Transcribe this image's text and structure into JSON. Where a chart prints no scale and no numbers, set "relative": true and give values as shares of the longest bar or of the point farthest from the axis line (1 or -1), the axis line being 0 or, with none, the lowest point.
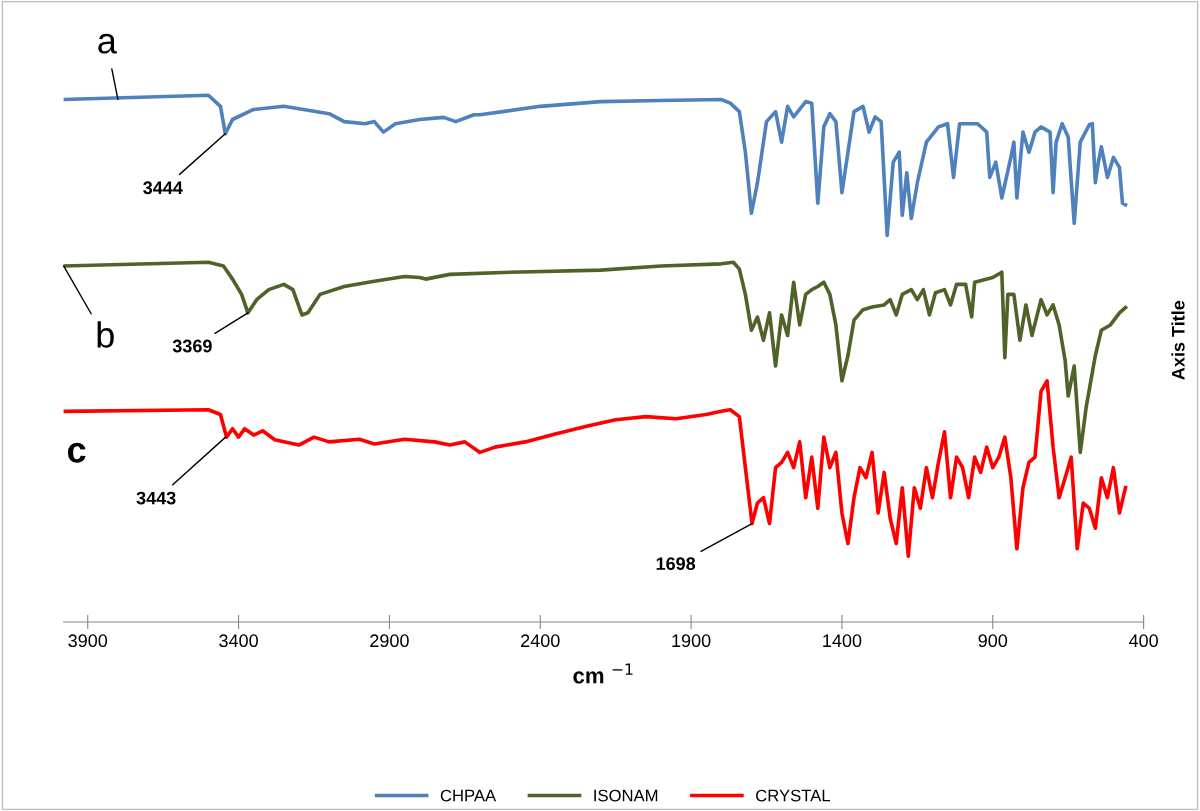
{
  "chart_data": {
    "type": "line",
    "relative": true,
    "xlabel": "cm $^{−1}$",
    "ylabel": "Axis Title",
    "xlim": [
      3980,
      400
    ],
    "xticks": [
      3900,
      3400,
      2900,
      2400,
      1900,
      1400,
      900,
      400
    ],
    "grid": false,
    "legend": "bottom",
    "marker": "none",
    "line_style": "solid",
    "series": [
      {
        "name": "CHPAA",
        "color": "#4f81bd",
        "x": [
          3980,
          3500,
          3460,
          3444,
          3420,
          3350,
          3250,
          3100,
          3050,
          2980,
          2950,
          2920,
          2880,
          2800,
          2720,
          2680,
          2620,
          2600,
          2400,
          2200,
          2000,
          1800,
          1770,
          1740,
          1720,
          1700,
          1680,
          1650,
          1620,
          1600,
          1580,
          1560,
          1520,
          1500,
          1480,
          1460,
          1440,
          1420,
          1400,
          1380,
          1360,
          1330,
          1310,
          1290,
          1270,
          1250,
          1230,
          1210,
          1200,
          1185,
          1170,
          1150,
          1120,
          1080,
          1050,
          1030,
          1010,
          950,
          920,
          910,
          890,
          870,
          840,
          830,
          820,
          800,
          780,
          760,
          740,
          710,
          700,
          690,
          670,
          650,
          630,
          610,
          580,
          570,
          560,
          550,
          540,
          520,
          500,
          480,
          470,
          460
        ],
        "values": [
          0.992,
          1.0,
          0.979,
          0.927,
          0.954,
          0.973,
          0.979,
          0.965,
          0.95,
          0.946,
          0.95,
          0.93,
          0.946,
          0.954,
          0.958,
          0.95,
          0.963,
          0.963,
          0.979,
          0.988,
          0.99,
          0.992,
          0.985,
          0.969,
          0.892,
          0.776,
          0.834,
          0.95,
          0.969,
          0.911,
          0.979,
          0.959,
          0.988,
          0.985,
          0.795,
          0.94,
          0.965,
          0.95,
          0.815,
          0.892,
          0.969,
          0.979,
          0.93,
          0.959,
          0.95,
          0.734,
          0.873,
          0.892,
          0.772,
          0.853,
          0.766,
          0.834,
          0.911,
          0.94,
          0.946,
          0.844,
          0.946,
          0.946,
          0.93,
          0.844,
          0.873,
          0.805,
          0.882,
          0.911,
          0.805,
          0.93,
          0.892,
          0.93,
          0.94,
          0.93,
          0.815,
          0.911,
          0.946,
          0.921,
          0.757,
          0.911,
          0.944,
          0.946,
          0.834,
          0.873,
          0.902,
          0.844,
          0.882,
          0.863,
          0.795,
          0.792
        ]
      },
      {
        "name": "ISONAM",
        "color": "#4f6228",
        "x": [
          3980,
          3500,
          3450,
          3420,
          3390,
          3369,
          3340,
          3300,
          3250,
          3220,
          3190,
          3170,
          3130,
          3050,
          2950,
          2850,
          2800,
          2780,
          2700,
          2500,
          2200,
          2000,
          1800,
          1760,
          1740,
          1720,
          1700,
          1680,
          1660,
          1640,
          1620,
          1600,
          1580,
          1560,
          1540,
          1520,
          1500,
          1480,
          1460,
          1440,
          1420,
          1400,
          1380,
          1360,
          1330,
          1300,
          1260,
          1240,
          1220,
          1200,
          1170,
          1150,
          1130,
          1110,
          1090,
          1060,
          1040,
          1020,
          990,
          970,
          960,
          900,
          870,
          860,
          850,
          830,
          810,
          790,
          770,
          740,
          720,
          700,
          680,
          660,
          650,
          630,
          610,
          590,
          560,
          540,
          510,
          480,
          460
        ],
        "values": [
          0.676,
          0.683,
          0.676,
          0.651,
          0.622,
          0.587,
          0.612,
          0.631,
          0.641,
          0.631,
          0.583,
          0.587,
          0.622,
          0.637,
          0.647,
          0.656,
          0.654,
          0.651,
          0.66,
          0.664,
          0.668,
          0.676,
          0.68,
          0.683,
          0.67,
          0.622,
          0.554,
          0.579,
          0.535,
          0.587,
          0.486,
          0.583,
          0.544,
          0.645,
          0.564,
          0.622,
          0.631,
          0.637,
          0.645,
          0.622,
          0.564,
          0.458,
          0.506,
          0.573,
          0.593,
          0.598,
          0.602,
          0.612,
          0.583,
          0.622,
          0.631,
          0.612,
          0.631,
          0.583,
          0.625,
          0.631,
          0.602,
          0.641,
          0.641,
          0.579,
          0.645,
          0.654,
          0.664,
          0.502,
          0.622,
          0.622,
          0.535,
          0.602,
          0.544,
          0.612,
          0.583,
          0.602,
          0.564,
          0.496,
          0.429,
          0.486,
          0.322,
          0.409,
          0.506,
          0.554,
          0.564,
          0.587,
          0.597
        ]
      },
      {
        "name": "CRYSTAL",
        "color": "#ff0000",
        "x": [
          3980,
          3500,
          3460,
          3440,
          3420,
          3400,
          3380,
          3350,
          3320,
          3280,
          3200,
          3150,
          3100,
          3000,
          2950,
          2850,
          2750,
          2700,
          2650,
          2600,
          2550,
          2450,
          2350,
          2250,
          2150,
          2050,
          1950,
          1850,
          1800,
          1770,
          1740,
          1720,
          1698,
          1680,
          1660,
          1640,
          1620,
          1600,
          1580,
          1560,
          1540,
          1520,
          1500,
          1480,
          1460,
          1440,
          1420,
          1400,
          1380,
          1360,
          1340,
          1320,
          1300,
          1280,
          1260,
          1240,
          1220,
          1200,
          1180,
          1160,
          1140,
          1120,
          1100,
          1080,
          1060,
          1040,
          1020,
          1000,
          980,
          960,
          940,
          920,
          900,
          880,
          860,
          840,
          820,
          800,
          780,
          760,
          740,
          720,
          700,
          680,
          660,
          640,
          620,
          600,
          580,
          560,
          540,
          520,
          500,
          480,
          460
        ],
        "values": [
          0.4,
          0.403,
          0.394,
          0.351,
          0.367,
          0.351,
          0.367,
          0.355,
          0.363,
          0.346,
          0.336,
          0.351,
          0.342,
          0.347,
          0.338,
          0.347,
          0.342,
          0.336,
          0.342,
          0.322,
          0.332,
          0.342,
          0.357,
          0.371,
          0.384,
          0.39,
          0.386,
          0.394,
          0.4,
          0.403,
          0.39,
          0.293,
          0.187,
          0.226,
          0.236,
          0.187,
          0.293,
          0.303,
          0.322,
          0.293,
          0.342,
          0.236,
          0.313,
          0.216,
          0.351,
          0.293,
          0.322,
          0.207,
          0.149,
          0.236,
          0.293,
          0.274,
          0.322,
          0.207,
          0.284,
          0.197,
          0.149,
          0.255,
          0.125,
          0.255,
          0.216,
          0.293,
          0.236,
          0.303,
          0.361,
          0.236,
          0.313,
          0.293,
          0.236,
          0.313,
          0.284,
          0.332,
          0.293,
          0.313,
          0.351,
          0.274,
          0.139,
          0.255,
          0.303,
          0.313,
          0.438,
          0.458,
          0.332,
          0.236,
          0.274,
          0.313,
          0.139,
          0.226,
          0.216,
          0.178,
          0.274,
          0.236,
          0.293,
          0.207,
          0.255
        ]
      }
    ],
    "annotations": [
      {
        "text": "a",
        "x": 3800,
        "y": 0.992
      },
      {
        "text": "3444",
        "x": 3444,
        "y": 0.927
      },
      {
        "text": "b",
        "x": 3980,
        "y": 0.676
      },
      {
        "text": "3369",
        "x": 3369,
        "y": 0.587
      },
      "c",
      {
        "text": "3443",
        "x": 3443,
        "y": 0.351
      },
      {
        "text": "1698",
        "x": 1698,
        "y": 0.187
      }
    ]
  }
}
